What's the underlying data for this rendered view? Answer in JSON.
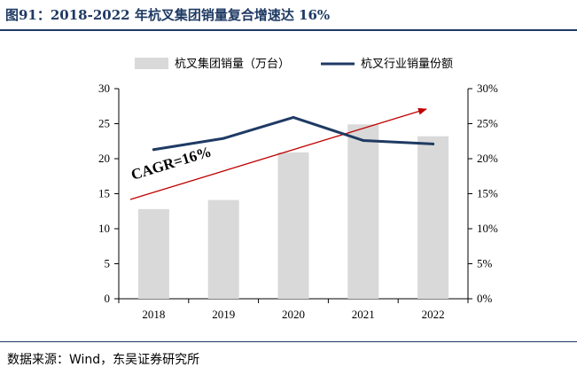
{
  "figure": {
    "title": "图91：2018-2022 年杭叉集团销量复合增速达 16%",
    "source": "数据来源：Wind，东吴证券研究所"
  },
  "chart_data": {
    "type": "bar+line",
    "categories": [
      "2018",
      "2019",
      "2020",
      "2021",
      "2022"
    ],
    "series": [
      {
        "name": "杭叉集团销量（万台）",
        "type": "bar",
        "axis": "left",
        "values": [
          12.8,
          14.1,
          20.9,
          24.9,
          23.2
        ],
        "color": "#d9d9d9"
      },
      {
        "name": "杭叉行业销量份额",
        "type": "line",
        "axis": "right",
        "values": [
          0.213,
          0.229,
          0.259,
          0.226,
          0.221
        ],
        "color": "#1f3a63"
      }
    ],
    "y_left": {
      "min": 0,
      "max": 30,
      "ticks": [
        "0",
        "5",
        "10",
        "15",
        "20",
        "25",
        "30"
      ]
    },
    "y_right": {
      "min": 0,
      "max": 0.3,
      "ticks": [
        "0%",
        "5%",
        "10%",
        "15%",
        "20%",
        "25%",
        "30%"
      ]
    },
    "annotation": {
      "text": "CAGR=16%",
      "arrow_color": "#c00000"
    },
    "legend": {
      "position": "top"
    },
    "grid": false
  }
}
